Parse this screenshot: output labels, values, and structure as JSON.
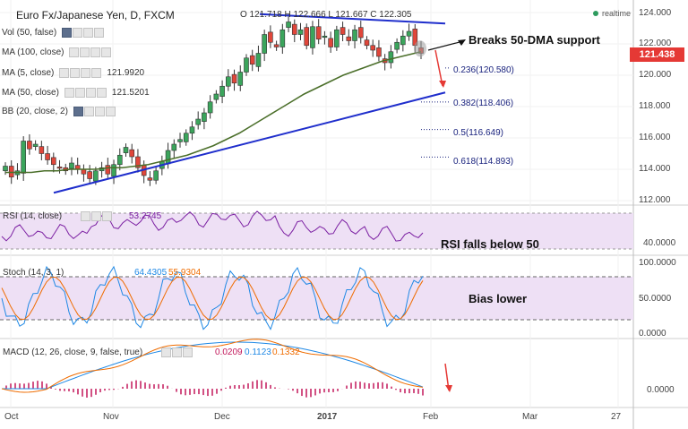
{
  "header": {
    "symbol": "Euro Fx/Japanese Yen, D, FXCM",
    "ohlc": "O 121.718 H 122.666 L 121.667 C 122.305",
    "realtime": "realtime"
  },
  "indicators": {
    "vol": {
      "label": "Vol (50, false)"
    },
    "ma100": {
      "label": "MA (100, close)"
    },
    "ma5": {
      "label": "MA (5, close)",
      "value": "121.9920"
    },
    "ma50": {
      "label": "MA (50, close)",
      "value": "121.5201"
    },
    "bb": {
      "label": "BB (20, close, 2)"
    }
  },
  "price_axis": {
    "ticks": [
      "124.000",
      "122.000",
      "120.000",
      "118.000",
      "116.000",
      "114.000",
      "112.000"
    ],
    "last": "121.438"
  },
  "fib": {
    "l1": "0.236(120.580)",
    "l2": "0.382(118.406)",
    "l3": "0.5(116.649)",
    "l4": "0.618(114.893)"
  },
  "annotations": {
    "breaks": "Breaks 50-DMA support",
    "rsi": "RSI falls below 50",
    "bias": "Bias lower"
  },
  "rsi": {
    "label": "RSI (14, close)",
    "value": "53.2745",
    "ticks": [
      "40.0000"
    ]
  },
  "stoch": {
    "label": "Stoch (14, 3, 1)",
    "v1": "64.4305",
    "v2": "55.9304",
    "ticks": [
      "100.0000",
      "50.0000",
      "0.0000"
    ]
  },
  "macd": {
    "label": "MACD (12, 26, close, 9, false, true)",
    "v1": "0.0209",
    "v2": "0.1123",
    "v3": "0.1332",
    "ticks": [
      "0.0000"
    ]
  },
  "x_axis": {
    "labels": [
      "Oct",
      "Nov",
      "Dec",
      "2017",
      "Feb",
      "Mar",
      "27"
    ]
  },
  "colors": {
    "up": "#3ba55c",
    "down": "#e0463a",
    "ma50": "#4b6f2a",
    "trend": "#1f2ecc",
    "rsi": "#7b1fa2",
    "band": "#eee0f5",
    "fibline": "#1a237e"
  },
  "chart_data": {
    "type": "line",
    "title": "Euro Fx/Japanese Yen, D, FXCM",
    "price_range": [
      112,
      124
    ],
    "close_series_approx": [
      114.2,
      113.5,
      113.9,
      115.8,
      115.3,
      115.6,
      115.0,
      114.6,
      114.3,
      114.1,
      113.9,
      114.4,
      114.0,
      113.7,
      113.4,
      113.9,
      114.1,
      113.7,
      114.3,
      114.9,
      115.4,
      114.8,
      114.1,
      113.6,
      113.3,
      113.9,
      114.5,
      115.2,
      115.6,
      115.9,
      116.3,
      116.7,
      117.2,
      117.6,
      118.3,
      118.8,
      119.3,
      119.9,
      119.5,
      120.2,
      121.1,
      120.7,
      121.4,
      122.6,
      122.1,
      121.8,
      122.9,
      123.4,
      122.6,
      122.9,
      121.9,
      123.1,
      122.3,
      122.5,
      121.8,
      122.9,
      122.6,
      122.2,
      122.9,
      122.4,
      121.9,
      121.6,
      121.2,
      120.8,
      121.5,
      122.1,
      122.5,
      122.8,
      121.9,
      121.4
    ],
    "ma50_series_approx": [
      113.8,
      113.8,
      113.8,
      113.9,
      113.9,
      114.0,
      114.0,
      114.0,
      114.1,
      114.1,
      114.2,
      114.3,
      114.5,
      114.7,
      114.9,
      115.2,
      115.5,
      115.9,
      116.3,
      116.8,
      117.3,
      117.8,
      118.3,
      118.8,
      119.2,
      119.6,
      120.0,
      120.3,
      120.6,
      120.9,
      121.1,
      121.3,
      121.5
    ],
    "trendlines": [
      "upper descending resistance from Dec highs",
      "lower ascending support from late Oct lows"
    ]
  }
}
